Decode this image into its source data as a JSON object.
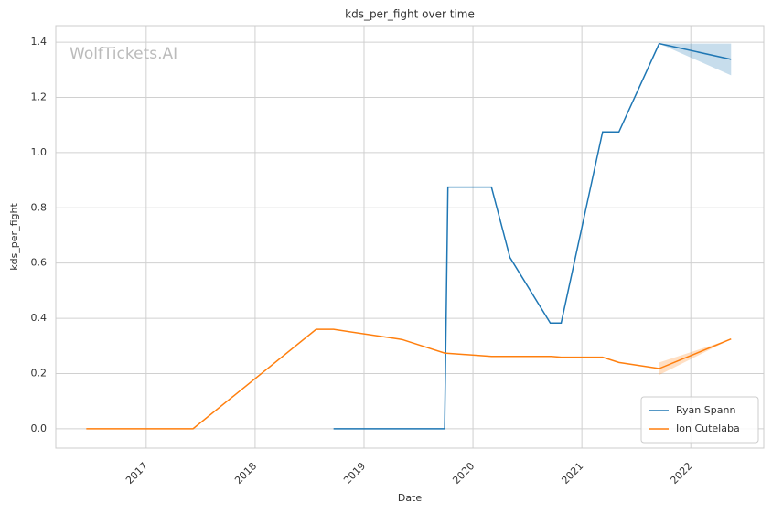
{
  "chart_data": {
    "type": "line",
    "title": "kds_per_fight over time",
    "xlabel": "Date",
    "ylabel": "kds_per_fight",
    "watermark": "WolfTickets.AI",
    "xlim": [
      2016.17,
      2022.67
    ],
    "xticks": [
      2017,
      2018,
      2019,
      2020,
      2021,
      2022
    ],
    "ylim": [
      -0.07,
      1.46
    ],
    "yticks": [
      {
        "value": 0,
        "label": "0.0"
      },
      0.2,
      0.4,
      0.6,
      0.8,
      {
        "value": 1,
        "label": "1.0"
      },
      1.2,
      1.4
    ],
    "grid": true,
    "legend": "lower right",
    "series": [
      {
        "name": "Ryan Spann",
        "color": "#1f77b4",
        "x": [
          2018.72,
          2019.74,
          2019.77,
          2020.17,
          2020.34,
          2020.71,
          2020.81,
          2021.19,
          2021.34,
          2021.71,
          2022.37
        ],
        "values": [
          0,
          0,
          0.875,
          0.875,
          0.62,
          0.383,
          0.383,
          1.075,
          1.075,
          1.395,
          1.338
        ],
        "band_lower": [
          null,
          null,
          null,
          null,
          null,
          null,
          null,
          null,
          null,
          1.395,
          1.28
        ],
        "band_upper": [
          null,
          null,
          null,
          null,
          null,
          null,
          null,
          null,
          null,
          1.395,
          1.395
        ]
      },
      {
        "name": "Ion Cutelaba",
        "color": "#ff7f0e",
        "x": [
          2016.45,
          2017.43,
          2018.56,
          2018.72,
          2019.32,
          2019.35,
          2019.74,
          2020.17,
          2020.72,
          2020.81,
          2021.19,
          2021.34,
          2021.71,
          2022.37
        ],
        "values": [
          0,
          0,
          0.36,
          0.36,
          0.325,
          0.323,
          0.274,
          0.262,
          0.262,
          0.259,
          0.259,
          0.24,
          0.218,
          0.325
        ],
        "band_lower": [
          null,
          null,
          null,
          null,
          null,
          null,
          null,
          null,
          null,
          null,
          null,
          null,
          0.195,
          0.325
        ],
        "band_upper": [
          null,
          null,
          null,
          null,
          null,
          null,
          null,
          null,
          null,
          null,
          null,
          null,
          0.24,
          0.325
        ]
      }
    ]
  }
}
